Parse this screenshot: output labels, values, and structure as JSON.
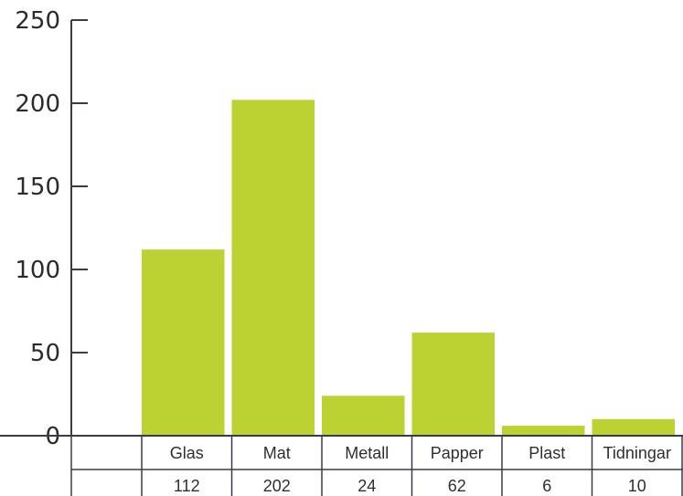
{
  "chart_data": {
    "type": "bar",
    "categories": [
      "Glas",
      "Mat",
      "Metall",
      "Papper",
      "Plast",
      "Tidningar"
    ],
    "values": [
      112,
      202,
      24,
      62,
      6,
      10
    ],
    "ylim": [
      0,
      250
    ],
    "yticks": [
      0,
      50,
      100,
      150,
      200,
      250
    ],
    "grid": false,
    "bar_color": "#bcd232",
    "axis_color": "#3a3a4e",
    "data_table": {
      "row_labels": [
        "",
        ""
      ],
      "show_values_row": true
    }
  }
}
